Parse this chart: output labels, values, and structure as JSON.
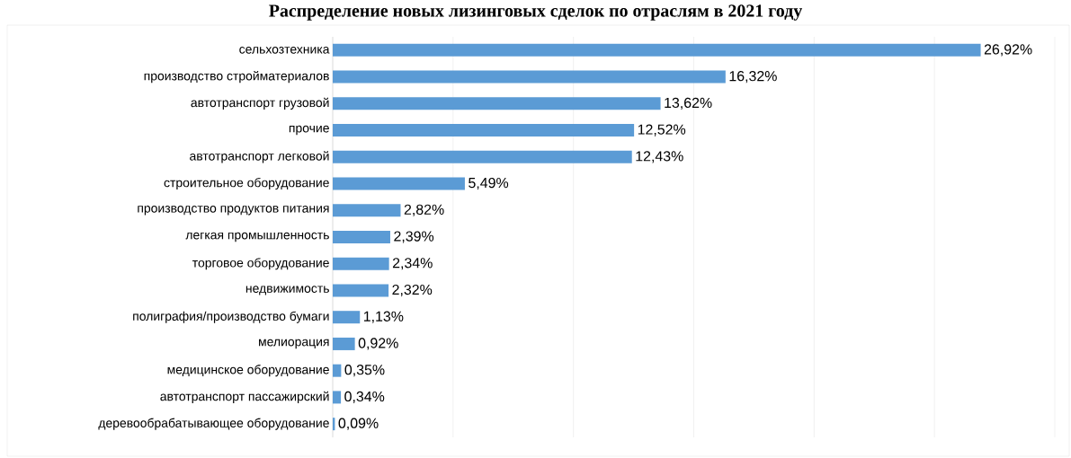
{
  "chart_data": {
    "type": "bar",
    "orientation": "horizontal",
    "title": "Распределение новых лизинговых сделок по отраслям в 2021 году",
    "categories": [
      "сельхозтехника",
      "производство стройматериалов",
      "автотранспорт грузовой",
      "прочие",
      "автотранспорт легковой",
      "строительное оборудование",
      "производство продуктов питания",
      "легкая промышленность",
      "торговое оборудование",
      "недвижимость",
      "полиграфия/производство бумаги",
      "мелиорация",
      "медицинское оборудование",
      "автотранспорт пассажирский",
      "деревообрабатывающее оборудование"
    ],
    "values": [
      26.92,
      16.32,
      13.62,
      12.52,
      12.43,
      5.49,
      2.82,
      2.39,
      2.34,
      2.32,
      1.13,
      0.92,
      0.35,
      0.34,
      0.09
    ],
    "value_labels": [
      "26,92%",
      "16,32%",
      "13,62%",
      "12,52%",
      "12,43%",
      "5,49%",
      "2,82%",
      "2,39%",
      "2,34%",
      "2,32%",
      "1,13%",
      "0,92%",
      "0,35%",
      "0,34%",
      "0,09%"
    ],
    "color": "#5b9bd5",
    "xlim": [
      0,
      30
    ],
    "xticks": [
      {
        "value": 0,
        "label": null
      },
      {
        "value": 5,
        "label": null
      },
      {
        "value": 10,
        "label": null
      },
      {
        "value": 15,
        "label": null
      },
      {
        "value": 20,
        "label": null
      },
      {
        "value": 25,
        "label": null
      },
      {
        "value": 30,
        "label": null
      }
    ],
    "grid": "x",
    "tick_labels": "y"
  }
}
